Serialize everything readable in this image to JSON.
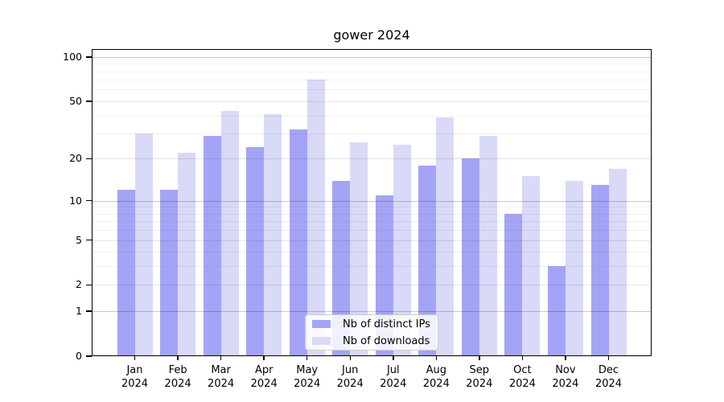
{
  "chart_data": {
    "type": "bar",
    "title": "gower 2024",
    "categories": [
      "Jan",
      "Feb",
      "Mar",
      "Apr",
      "May",
      "Jun",
      "Jul",
      "Aug",
      "Sep",
      "Oct",
      "Nov",
      "Dec"
    ],
    "year_label": "2024",
    "series": [
      {
        "name": "Nb of distinct IPs",
        "color": "#a4a4f6",
        "values": [
          12,
          12,
          29,
          24,
          32,
          14,
          11,
          18,
          20,
          8,
          3,
          13
        ]
      },
      {
        "name": "Nb of downloads",
        "color": "#d9d9f8",
        "values": [
          30,
          22,
          43,
          41,
          70,
          26,
          25,
          39,
          29,
          15,
          14,
          17
        ]
      }
    ],
    "xlabel": "",
    "ylabel": "",
    "scale": "log10(1+v)",
    "ylim": [
      0,
      113
    ],
    "y_major_ticks": [
      0,
      1,
      2,
      5,
      10,
      20,
      50,
      100
    ],
    "y_minor_gridlines": [
      3,
      4,
      6,
      7,
      8,
      9,
      30,
      40,
      60,
      70,
      80,
      90
    ],
    "grid": "horizontal",
    "legend_position": "inside-bottom-center"
  }
}
